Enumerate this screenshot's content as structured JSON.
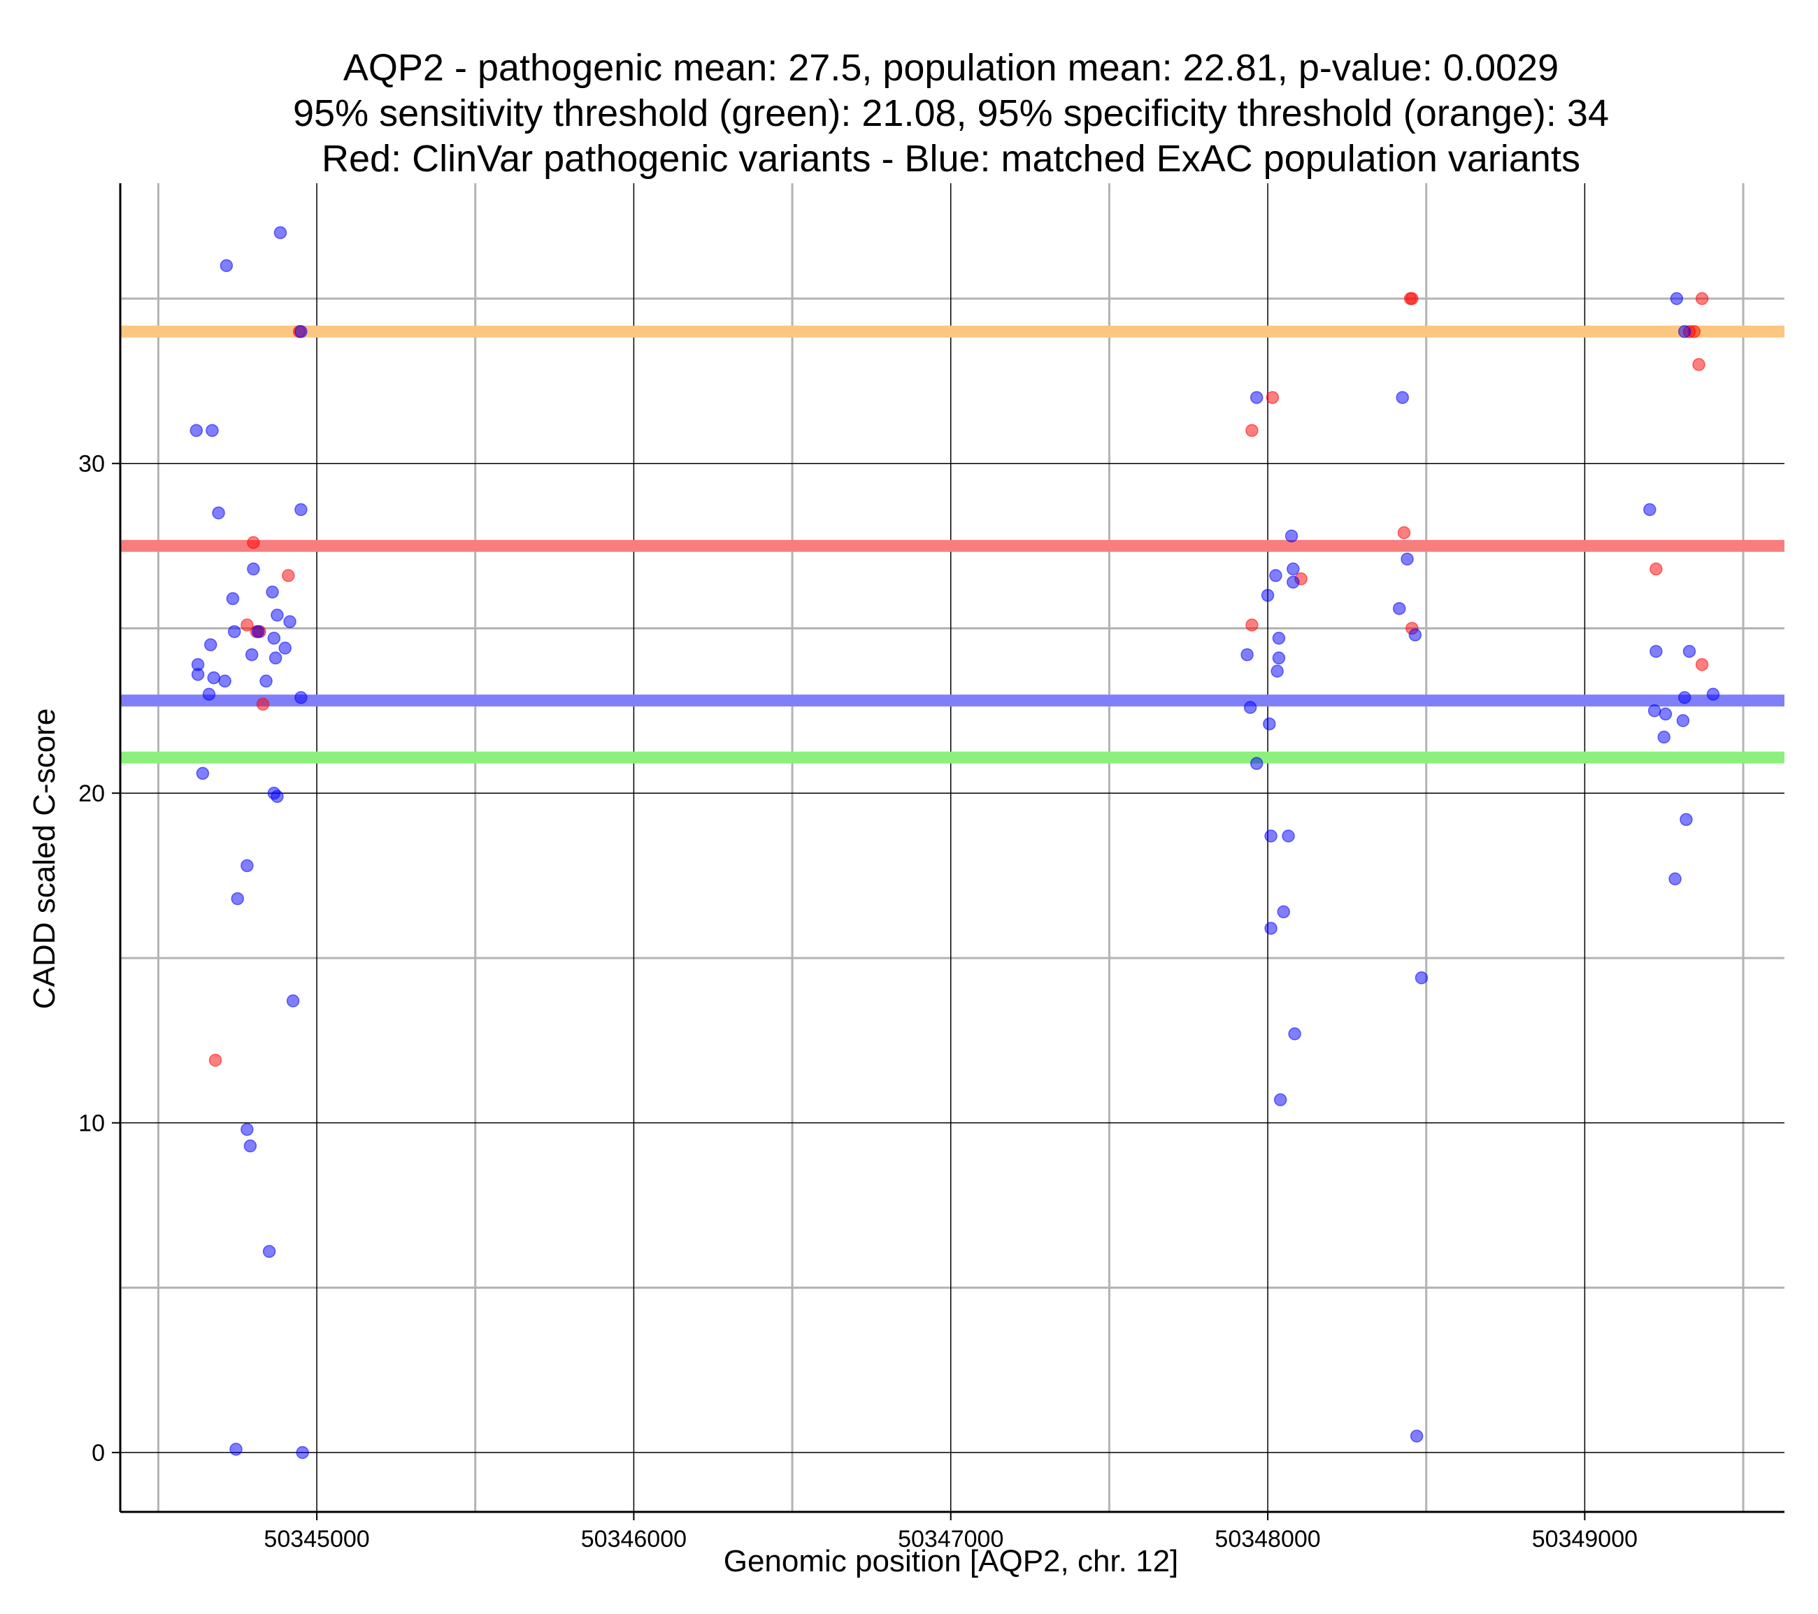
{
  "chart_data": {
    "type": "scatter",
    "title_lines": [
      "AQP2 - pathogenic mean: 27.5, population mean: 22.81, p-value: 0.0029",
      "95% sensitivity threshold (green): 21.08, 95% specificity threshold (orange): 34",
      "Red: ClinVar pathogenic variants - Blue: matched ExAC population variants"
    ],
    "xlabel": "Genomic position [AQP2, chr. 12]",
    "ylabel": "CADD scaled C-score",
    "xlim": [
      50344380,
      50349630
    ],
    "ylim": [
      -1.8,
      38.5
    ],
    "x_major_ticks": [
      50345000,
      50346000,
      50347000,
      50348000,
      50349000
    ],
    "x_minor_ticks": [
      50344500,
      50345500,
      50346500,
      50347500,
      50348500,
      50349500
    ],
    "y_major_ticks": [
      0,
      10,
      20,
      30
    ],
    "y_minor_ticks": [
      5,
      15,
      25,
      35
    ],
    "grid": true,
    "colors": {
      "pathogenic": "#ff0000",
      "population": "#0000ff",
      "pathogenic_mean_line": "#f87e7e",
      "population_mean_line": "#7f7ffb",
      "sensitivity_line": "#8cf07c",
      "specificity_line": "#fbc680"
    },
    "reference_lines": [
      {
        "name": "specificity threshold (orange)",
        "value": 34,
        "color": "#fbc680"
      },
      {
        "name": "pathogenic mean (red)",
        "value": 27.5,
        "color": "#f87e7e"
      },
      {
        "name": "population mean (blue)",
        "value": 22.81,
        "color": "#7f7ffb"
      },
      {
        "name": "sensitivity threshold (green)",
        "value": 21.08,
        "color": "#8cf07c"
      }
    ],
    "series": [
      {
        "name": "ClinVar pathogenic variants",
        "color": "#ff0000",
        "points": [
          [
            50344945,
            34
          ],
          [
            50344800,
            27.6
          ],
          [
            50344910,
            26.6
          ],
          [
            50344780,
            25.1
          ],
          [
            50344810,
            24.9
          ],
          [
            50344820,
            24.9
          ],
          [
            50344830,
            22.7
          ],
          [
            50344680,
            11.9
          ],
          [
            50347950,
            31
          ],
          [
            50348015,
            32
          ],
          [
            50347950,
            25.1
          ],
          [
            50348105,
            26.5
          ],
          [
            50348450,
            35
          ],
          [
            50348455,
            35
          ],
          [
            50348430,
            27.9
          ],
          [
            50348455,
            25
          ],
          [
            50349225,
            26.8
          ],
          [
            50349330,
            34
          ],
          [
            50349345,
            34
          ],
          [
            50349360,
            33
          ],
          [
            50349370,
            35
          ],
          [
            50349370,
            23.9
          ]
        ]
      },
      {
        "name": "matched ExAC population variants",
        "color": "#0000ff",
        "points": [
          [
            50344715,
            36
          ],
          [
            50344885,
            37
          ],
          [
            50344950,
            34
          ],
          [
            50344620,
            31
          ],
          [
            50344670,
            31
          ],
          [
            50344690,
            28.5
          ],
          [
            50344950,
            28.6
          ],
          [
            50344800,
            26.8
          ],
          [
            50344860,
            26.1
          ],
          [
            50344735,
            25.9
          ],
          [
            50344875,
            25.4
          ],
          [
            50344915,
            25.2
          ],
          [
            50344740,
            24.9
          ],
          [
            50344815,
            24.9
          ],
          [
            50344865,
            24.7
          ],
          [
            50344665,
            24.5
          ],
          [
            50344900,
            24.4
          ],
          [
            50344795,
            24.2
          ],
          [
            50344870,
            24.1
          ],
          [
            50344625,
            23.9
          ],
          [
            50344625,
            23.6
          ],
          [
            50344675,
            23.5
          ],
          [
            50344710,
            23.4
          ],
          [
            50344840,
            23.4
          ],
          [
            50344660,
            23
          ],
          [
            50344950,
            22.9
          ],
          [
            50344640,
            20.6
          ],
          [
            50344865,
            20
          ],
          [
            50344875,
            19.9
          ],
          [
            50344780,
            17.8
          ],
          [
            50344750,
            16.8
          ],
          [
            50344925,
            13.7
          ],
          [
            50344780,
            9.8
          ],
          [
            50344790,
            9.3
          ],
          [
            50344850,
            6.1
          ],
          [
            50344745,
            0.1
          ],
          [
            50344955,
            0
          ],
          [
            50347965,
            32
          ],
          [
            50348075,
            27.8
          ],
          [
            50348080,
            26.8
          ],
          [
            50348025,
            26.6
          ],
          [
            50348080,
            26.4
          ],
          [
            50348000,
            26
          ],
          [
            50348035,
            24.7
          ],
          [
            50347935,
            24.2
          ],
          [
            50348035,
            24.1
          ],
          [
            50348030,
            23.7
          ],
          [
            50347945,
            22.6
          ],
          [
            50348005,
            22.1
          ],
          [
            50347965,
            20.9
          ],
          [
            50348010,
            18.7
          ],
          [
            50348065,
            18.7
          ],
          [
            50348050,
            16.4
          ],
          [
            50348010,
            15.9
          ],
          [
            50348085,
            12.7
          ],
          [
            50348040,
            10.7
          ],
          [
            50348425,
            32
          ],
          [
            50348440,
            27.1
          ],
          [
            50348415,
            25.6
          ],
          [
            50348465,
            24.8
          ],
          [
            50348485,
            14.4
          ],
          [
            50348470,
            0.5
          ],
          [
            50349290,
            35
          ],
          [
            50349315,
            34
          ],
          [
            50349205,
            28.6
          ],
          [
            50349225,
            24.3
          ],
          [
            50349330,
            24.3
          ],
          [
            50349315,
            22.9
          ],
          [
            50349405,
            23
          ],
          [
            50349220,
            22.5
          ],
          [
            50349255,
            22.4
          ],
          [
            50349310,
            22.2
          ],
          [
            50349250,
            21.7
          ],
          [
            50349320,
            19.2
          ],
          [
            50349285,
            17.4
          ]
        ]
      }
    ]
  }
}
